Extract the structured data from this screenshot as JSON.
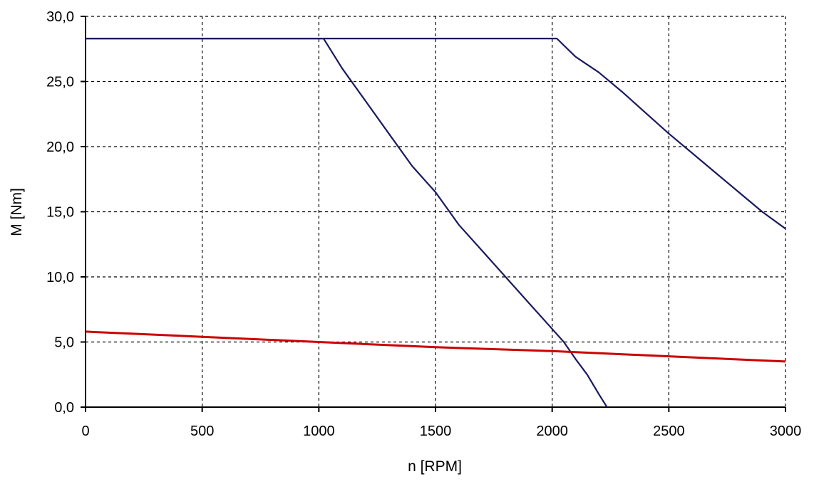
{
  "chart_data": {
    "type": "line",
    "title": "",
    "xlabel": "n [RPM]",
    "ylabel": "M [Nm]",
    "xlim": [
      0,
      3000
    ],
    "ylim": [
      0,
      30
    ],
    "x_ticks": [
      0,
      500,
      1000,
      1500,
      2000,
      2500,
      3000
    ],
    "x_tick_labels": [
      "0",
      "500",
      "1000",
      "1500",
      "2000",
      "2500",
      "3000"
    ],
    "y_ticks": [
      0,
      5,
      10,
      15,
      20,
      25,
      30
    ],
    "y_tick_labels": [
      "0,0",
      "5,0",
      "10,0",
      "15,0",
      "20,0",
      "25,0",
      "30,0"
    ],
    "grid": true,
    "legend": "none",
    "series": [
      {
        "color": "#1a1a5e",
        "x": [
          0,
          1020,
          1100,
          1200,
          1300,
          1400,
          1500,
          1600,
          1700,
          1800,
          1900,
          2000,
          2050,
          2100,
          2150,
          2200,
          2235
        ],
        "y": [
          28.3,
          28.3,
          26.0,
          23.5,
          21.0,
          18.5,
          16.5,
          14.0,
          12.0,
          10.0,
          8.0,
          6.0,
          5.0,
          3.7,
          2.5,
          1.0,
          0.0
        ]
      },
      {
        "color": "#1a1a5e",
        "x": [
          0,
          2020,
          2100,
          2200,
          2300,
          2400,
          2500,
          2600,
          2700,
          2800,
          2900,
          3000
        ],
        "y": [
          28.3,
          28.3,
          26.9,
          25.7,
          24.2,
          22.6,
          21.0,
          19.5,
          18.0,
          16.5,
          15.0,
          13.7
        ]
      },
      {
        "color": "#cc0000",
        "x": [
          0,
          500,
          1000,
          1500,
          2000,
          2500,
          3000
        ],
        "y": [
          5.8,
          5.4,
          5.0,
          4.6,
          4.3,
          3.9,
          3.5
        ]
      }
    ]
  }
}
